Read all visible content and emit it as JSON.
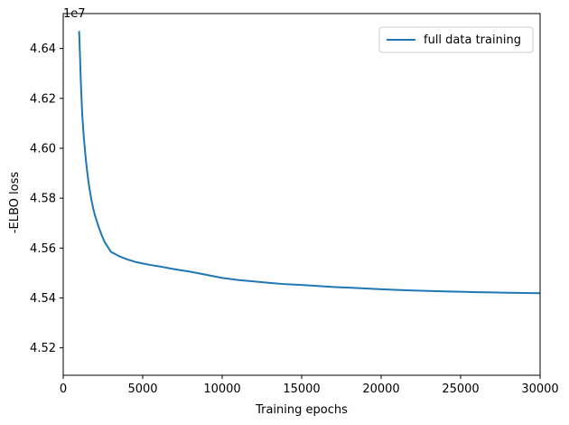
{
  "chart_data": {
    "type": "line",
    "title": "",
    "xlabel": "Training epochs",
    "ylabel": "-ELBO loss",
    "y_multiplier_label": "1e7",
    "xlim": [
      0,
      30000
    ],
    "ylim": [
      4.509,
      4.654
    ],
    "x_ticks": [
      0,
      5000,
      10000,
      15000,
      20000,
      25000,
      30000
    ],
    "x_tick_labels": [
      "0",
      "5000",
      "10000",
      "15000",
      "20000",
      "25000",
      "30000"
    ],
    "y_ticks": [
      4.52,
      4.54,
      4.56,
      4.58,
      4.6,
      4.62,
      4.64
    ],
    "y_tick_labels": [
      "4.52",
      "4.54",
      "4.56",
      "4.58",
      "4.60",
      "4.62",
      "4.64"
    ],
    "grid": false,
    "legend_position": "upper-right",
    "series": [
      {
        "name": "full data training",
        "color": "#1f77b4",
        "x": [
          1000,
          1050,
          1100,
          1150,
          1200,
          1300,
          1400,
          1500,
          1600,
          1700,
          1800,
          1900,
          2000,
          2200,
          2400,
          2600,
          2800,
          3000,
          3300,
          3600,
          4000,
          4500,
          5000,
          5500,
          6000,
          7000,
          8000,
          9000,
          10000,
          11000,
          12000,
          13000,
          14000,
          15000,
          16000,
          17000,
          18000,
          19000,
          20000,
          21000,
          22000,
          23000,
          24000,
          25000,
          26000,
          27000,
          28000,
          29000,
          30000
        ],
        "y": [
          4.647,
          4.638,
          4.628,
          4.62,
          4.613,
          4.604,
          4.597,
          4.591,
          4.586,
          4.582,
          4.5785,
          4.5755,
          4.573,
          4.569,
          4.5655,
          4.5625,
          4.5605,
          4.5585,
          4.5575,
          4.5565,
          4.5555,
          4.5545,
          4.5538,
          4.5532,
          4.5527,
          4.5515,
          4.5505,
          4.5493,
          4.548,
          4.5472,
          4.5466,
          4.546,
          4.5455,
          4.5452,
          4.5448,
          4.5444,
          4.5441,
          4.5438,
          4.5435,
          4.5432,
          4.543,
          4.5428,
          4.5426,
          4.5425,
          4.5423,
          4.5422,
          4.5421,
          4.542,
          4.5419
        ]
      }
    ],
    "annotations": []
  }
}
